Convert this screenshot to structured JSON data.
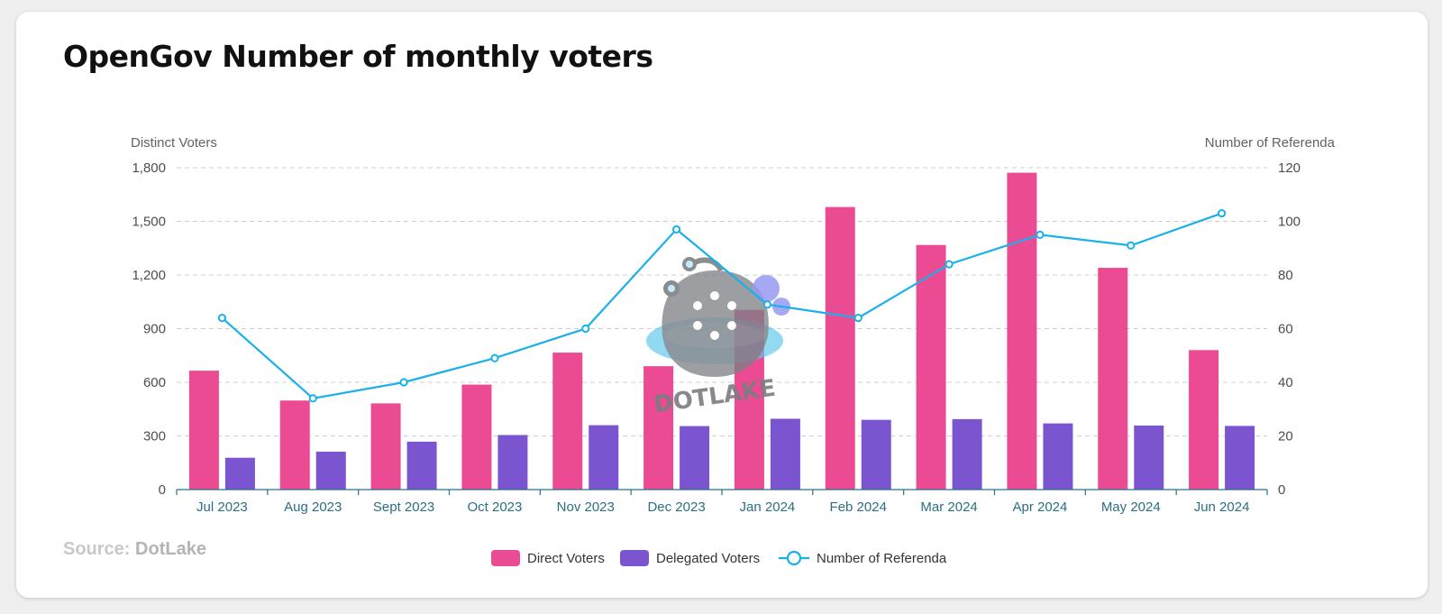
{
  "title": "OpenGov Number of monthly voters",
  "source": {
    "label": "Source:",
    "name": "DotLake"
  },
  "watermark": {
    "text": "DOTLAKE"
  },
  "chart_data": {
    "type": "bar",
    "categories": [
      "Jul 2023",
      "Aug 2023",
      "Sept 2023",
      "Oct 2023",
      "Nov 2023",
      "Dec 2023",
      "Jan 2024",
      "Feb 2024",
      "Mar 2024",
      "Apr 2024",
      "May 2024",
      "Jun 2024"
    ],
    "ylabel_left": "Distinct Voters",
    "ylabel_right": "Number of Referenda",
    "ylim_left": [
      0,
      1800
    ],
    "ylim_right": [
      0,
      120
    ],
    "yticks_left": [
      "0",
      "300",
      "600",
      "900",
      "1,200",
      "1,500",
      "1,800"
    ],
    "yticks_right": [
      "0",
      "20",
      "40",
      "60",
      "80",
      "100",
      "120"
    ],
    "grid": true,
    "legend_position": "bottom-center",
    "series": [
      {
        "name": "Direct Voters",
        "type": "bar",
        "axis": "left",
        "color": "#ea4b93",
        "values": [
          665,
          498,
          482,
          587,
          766,
          690,
          1005,
          1580,
          1368,
          1772,
          1240,
          780
        ]
      },
      {
        "name": "Delegated Voters",
        "type": "bar",
        "axis": "left",
        "color": "#7b55d0",
        "values": [
          178,
          212,
          268,
          305,
          360,
          355,
          396,
          390,
          394,
          370,
          358,
          356
        ]
      },
      {
        "name": "Number of Referenda",
        "type": "line",
        "axis": "right",
        "color": "#1ab0ea",
        "values": [
          64,
          34,
          40,
          49,
          60,
          97,
          69,
          64,
          84,
          95,
          91,
          103
        ]
      }
    ]
  }
}
